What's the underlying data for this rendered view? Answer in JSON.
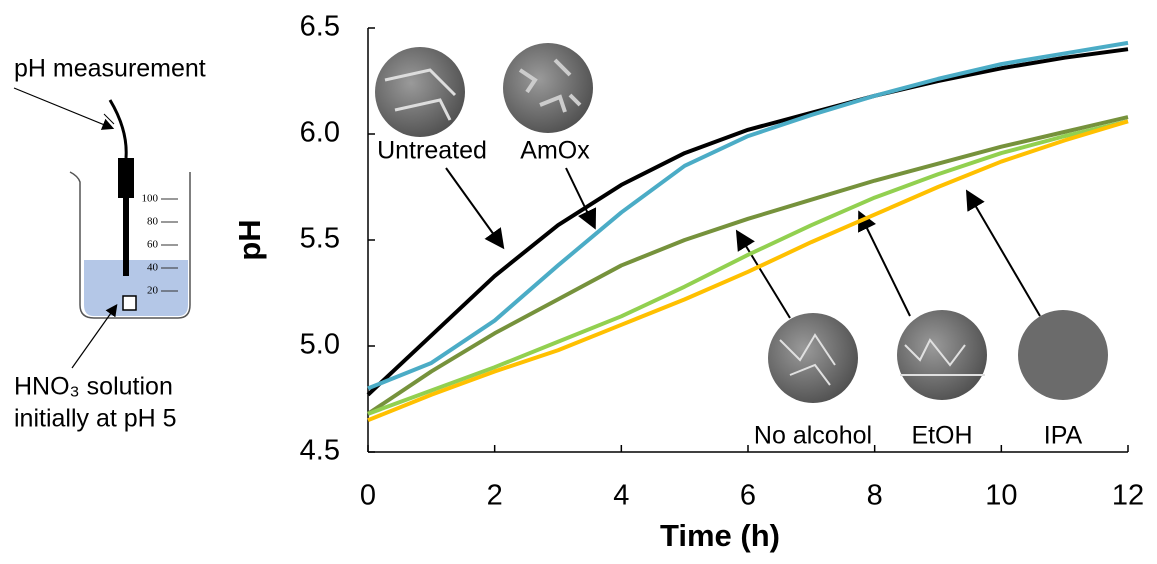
{
  "chart_data": {
    "type": "line",
    "x": [
      0,
      1,
      2,
      3,
      4,
      5,
      6,
      7,
      8,
      9,
      10,
      11,
      12
    ],
    "series": [
      {
        "name": "Untreated",
        "color": "#000000",
        "values": [
          4.77,
          5.05,
          5.33,
          5.57,
          5.76,
          5.91,
          6.02,
          6.1,
          6.18,
          6.25,
          6.31,
          6.36,
          6.4
        ]
      },
      {
        "name": "AmOx",
        "color": "#4bacc6",
        "values": [
          4.8,
          4.92,
          5.12,
          5.38,
          5.63,
          5.85,
          5.99,
          6.09,
          6.18,
          6.26,
          6.33,
          6.38,
          6.43
        ]
      },
      {
        "name": "No alcohol",
        "color": "#76923c",
        "values": [
          4.68,
          4.88,
          5.06,
          5.22,
          5.38,
          5.5,
          5.6,
          5.69,
          5.78,
          5.86,
          5.94,
          6.01,
          6.08
        ]
      },
      {
        "name": "EtOH",
        "color": "#92d050",
        "values": [
          4.68,
          4.79,
          4.9,
          5.02,
          5.14,
          5.28,
          5.43,
          5.57,
          5.7,
          5.81,
          5.91,
          5.99,
          6.06
        ]
      },
      {
        "name": "IPA",
        "color": "#ffc000",
        "values": [
          4.65,
          4.77,
          4.88,
          4.98,
          5.1,
          5.22,
          5.35,
          5.49,
          5.62,
          5.75,
          5.87,
          5.97,
          6.06
        ]
      }
    ],
    "xlim": [
      0,
      12
    ],
    "ylim": [
      4.5,
      6.5
    ],
    "xticks": [
      0,
      2,
      4,
      6,
      8,
      10,
      12
    ],
    "yticks": [
      4.5,
      {
        "value": 5,
        "label": "5.0"
      },
      5.5,
      {
        "value": 6,
        "label": "6.0"
      },
      6.5
    ],
    "xlabel": "Time (h)",
    "ylabel": "pH"
  },
  "diagram": {
    "probe_label": "pH measurement",
    "solution_label": [
      "HNO₃ solution",
      "initially at pH 5"
    ],
    "scale": [
      100,
      80,
      60,
      40,
      20
    ]
  }
}
